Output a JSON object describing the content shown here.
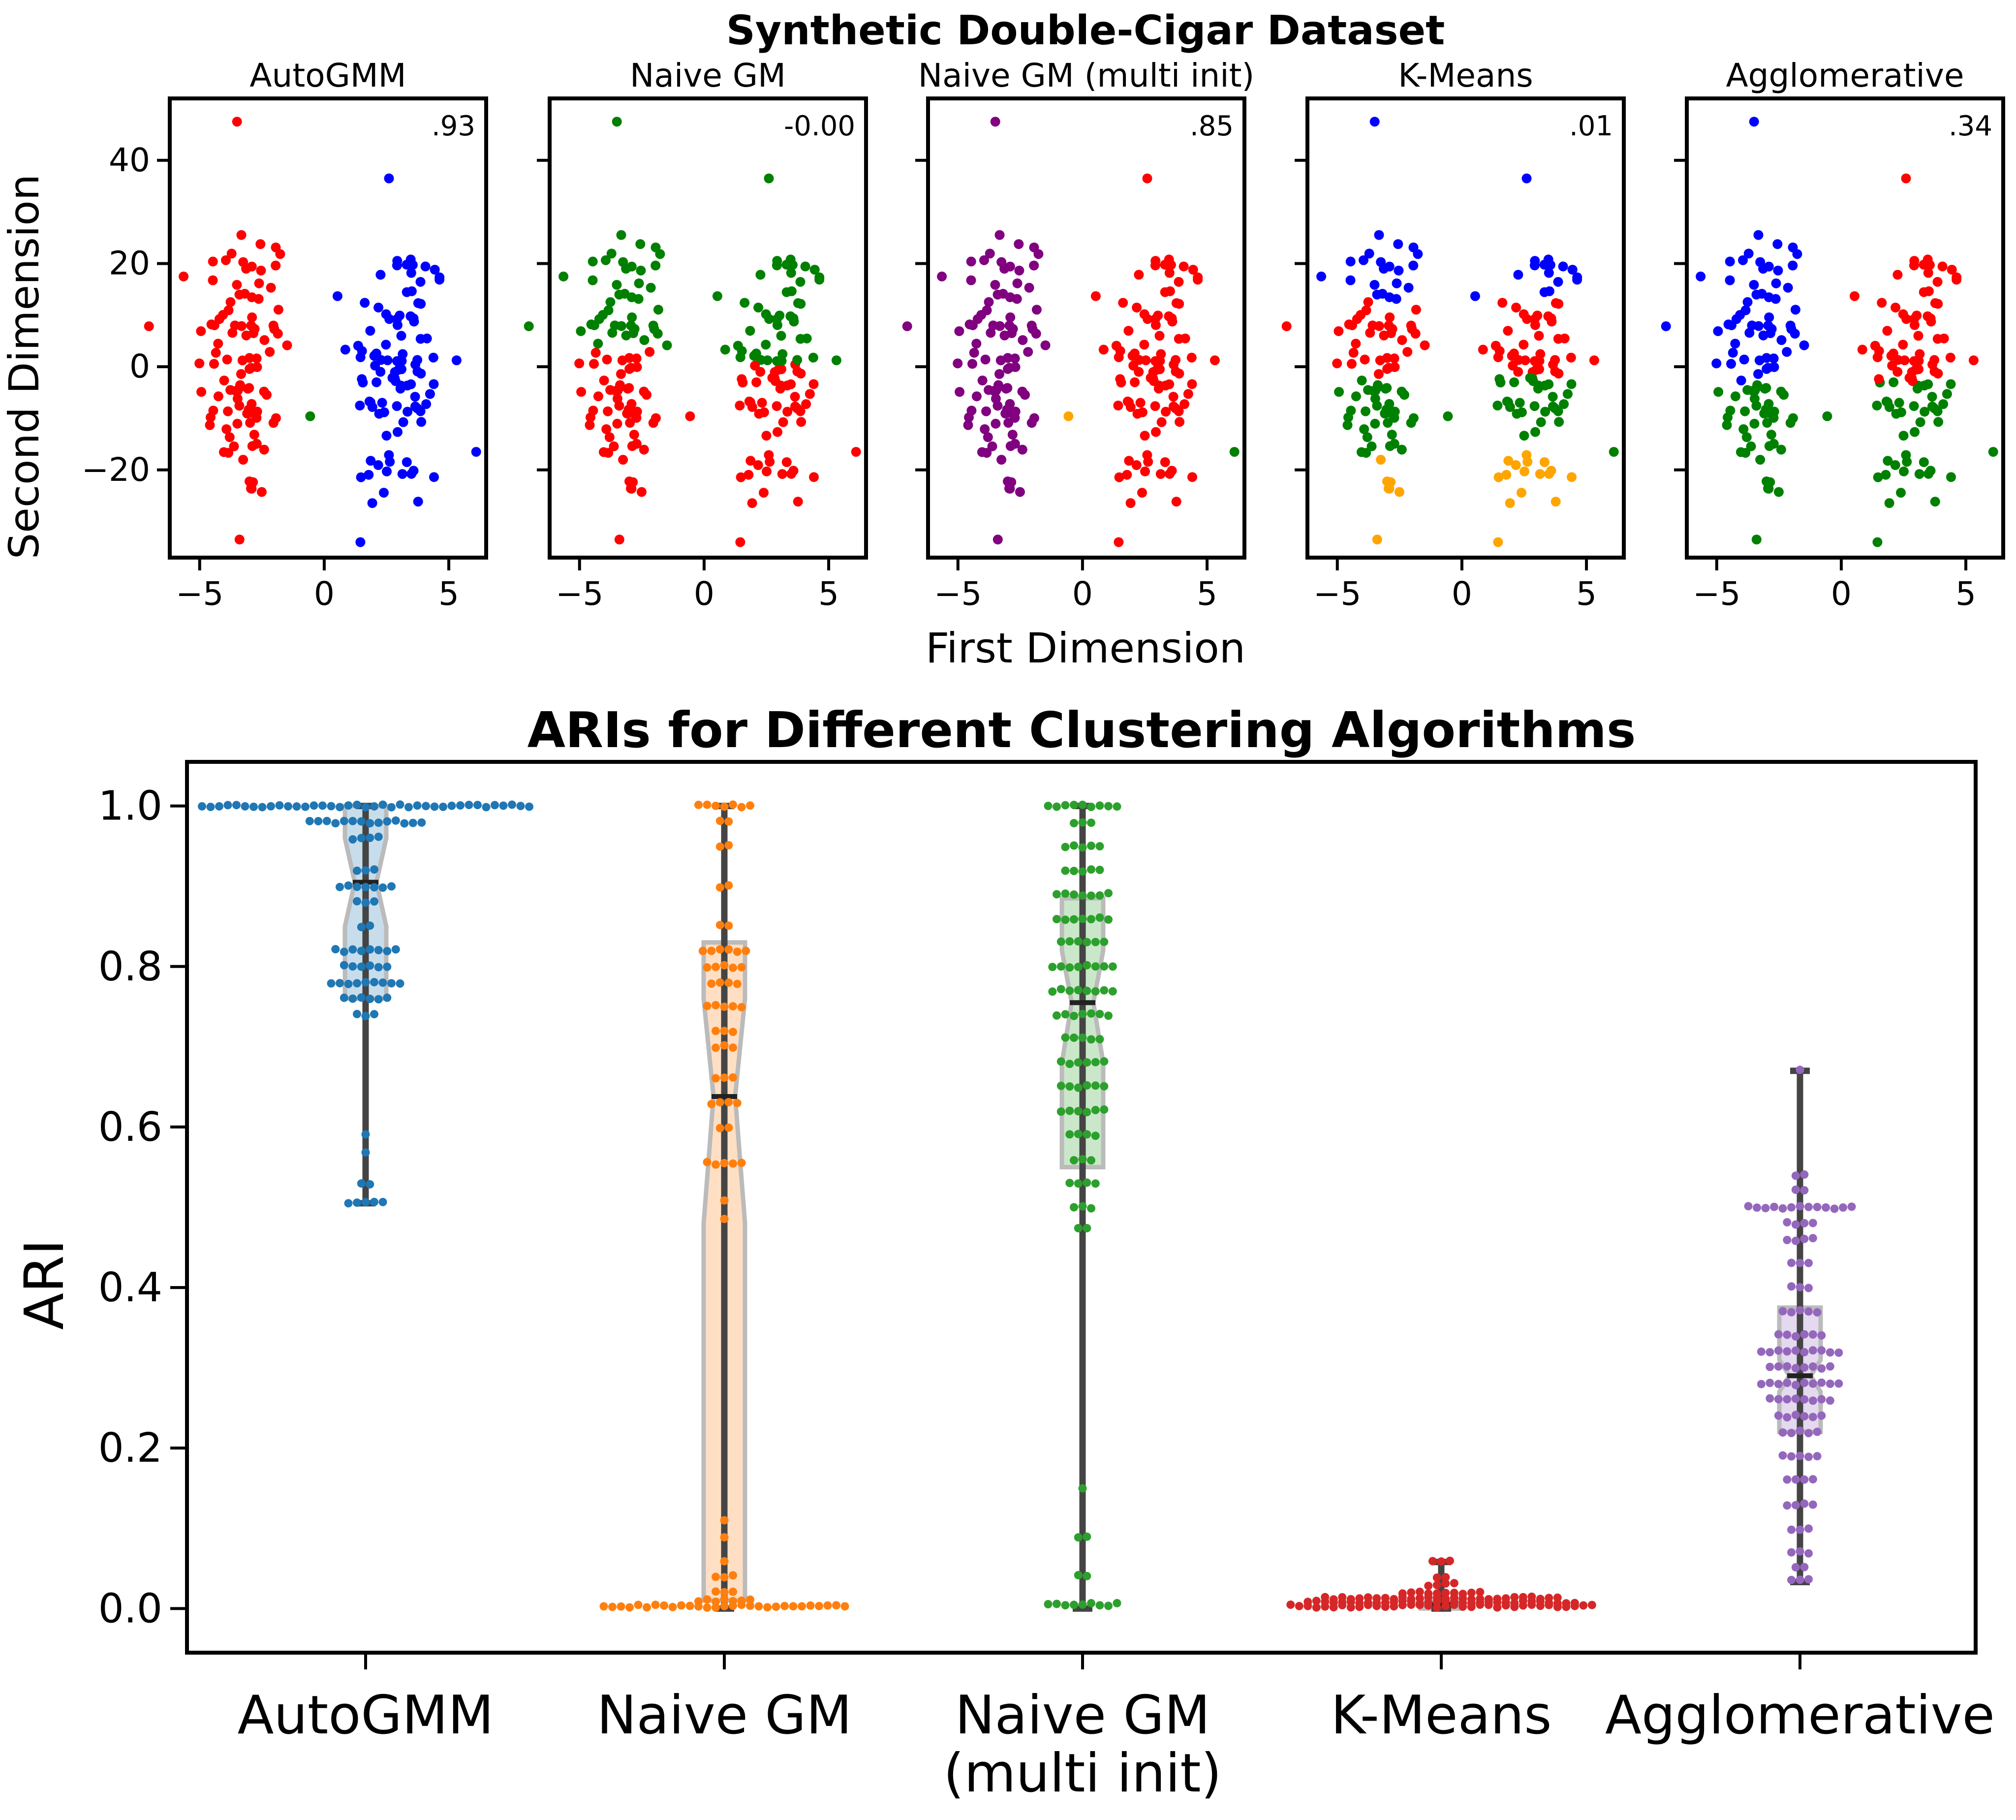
{
  "figure": {
    "suptitle": "Synthetic Double-Cigar Dataset",
    "scatter_xlabel": "First Dimension",
    "scatter_ylabel": "Second Dimension"
  },
  "colors": {
    "red": "#ff0000",
    "blue": "#0000ff",
    "green": "#008000",
    "purple": "#800080",
    "orange": "#ffa500",
    "autogmm": "#1f77b4",
    "naivegm": "#ff7f0e",
    "naivegm_multi": "#2ca02c",
    "kmeans": "#d62728",
    "agglomerative": "#9467bd"
  },
  "chart_data": [
    {
      "type": "scatter",
      "title": "AutoGMM",
      "annotation": ".93",
      "xlabel": "First Dimension",
      "ylabel": "Second Dimension",
      "xlim": [
        -6.2,
        6.5
      ],
      "ylim": [
        -37,
        52
      ],
      "xticks": [
        "−5",
        "0",
        "5"
      ],
      "yticks": [
        "−20",
        "0",
        "20",
        "40"
      ],
      "clusters": "left cigar red, right cigar blue, a few green outliers"
    },
    {
      "type": "scatter",
      "title": "Naive GM",
      "annotation": "-0.00",
      "xlim": [
        -6.2,
        6.5
      ],
      "ylim": [
        -37,
        52
      ],
      "xticks": [
        "−5",
        "0",
        "5"
      ],
      "clusters": "upper halves green, lower halves red"
    },
    {
      "type": "scatter",
      "title": "Naive GM (multi init)",
      "annotation": ".85",
      "xlim": [
        -6.2,
        6.5
      ],
      "ylim": [
        -37,
        52
      ],
      "xticks": [
        "−5",
        "0",
        "5"
      ],
      "clusters": "left cigar purple, right cigar red, few green/orange outliers"
    },
    {
      "type": "scatter",
      "title": "K-Means",
      "annotation": ".01",
      "xlim": [
        -6.2,
        6.5
      ],
      "ylim": [
        -37,
        52
      ],
      "xticks": [
        "−5",
        "0",
        "5"
      ],
      "clusters": "horizontal bands: blue top, red upper-middle, green lower-middle, orange bottom"
    },
    {
      "type": "scatter",
      "title": "Agglomerative",
      "annotation": ".34",
      "xlim": [
        -6.2,
        6.5
      ],
      "ylim": [
        -37,
        52
      ],
      "xticks": [
        "−5",
        "0",
        "5"
      ],
      "clusters": "left: blue top, green bottom; right: red top, green bottom"
    },
    {
      "type": "box",
      "title": "ARIs for Different Clustering Algorithms",
      "ylabel": "ARI",
      "ylim": [
        -0.055,
        1.055
      ],
      "yticks": [
        "0.0",
        "0.2",
        "0.4",
        "0.6",
        "0.8",
        "1.0"
      ],
      "categories": [
        "AutoGMM",
        "Naive GM",
        "Naive GM\n(multi init)",
        "K-Means",
        "Agglomerative"
      ],
      "category_lines": [
        [
          "AutoGMM"
        ],
        [
          "Naive GM"
        ],
        [
          "Naive GM",
          "(multi init)"
        ],
        [
          "K-Means"
        ],
        [
          "Agglomerative"
        ]
      ],
      "series": [
        {
          "name": "AutoGMM",
          "min": 0.505,
          "q1": 0.76,
          "median": 0.905,
          "q3": 1.0,
          "max": 1.0,
          "notch": [
            0.85,
            0.96
          ]
        },
        {
          "name": "Naive GM",
          "min": 0.0,
          "q1": 0.01,
          "median": 0.638,
          "q3": 0.83,
          "max": 1.0,
          "notch": [
            0.48,
            0.76
          ]
        },
        {
          "name": "Naive GM (multi init)",
          "min": 0.0,
          "q1": 0.55,
          "median": 0.755,
          "q3": 0.885,
          "max": 1.0,
          "notch": [
            0.68,
            0.82
          ]
        },
        {
          "name": "K-Means",
          "min": 0.0,
          "q1": 0.0,
          "median": 0.005,
          "q3": 0.01,
          "max": 0.058,
          "notch": [
            0.003,
            0.008
          ]
        },
        {
          "name": "Agglomerative",
          "min": 0.033,
          "q1": 0.22,
          "median": 0.29,
          "q3": 0.375,
          "max": 0.67,
          "notch": [
            0.27,
            0.31
          ]
        }
      ]
    }
  ]
}
